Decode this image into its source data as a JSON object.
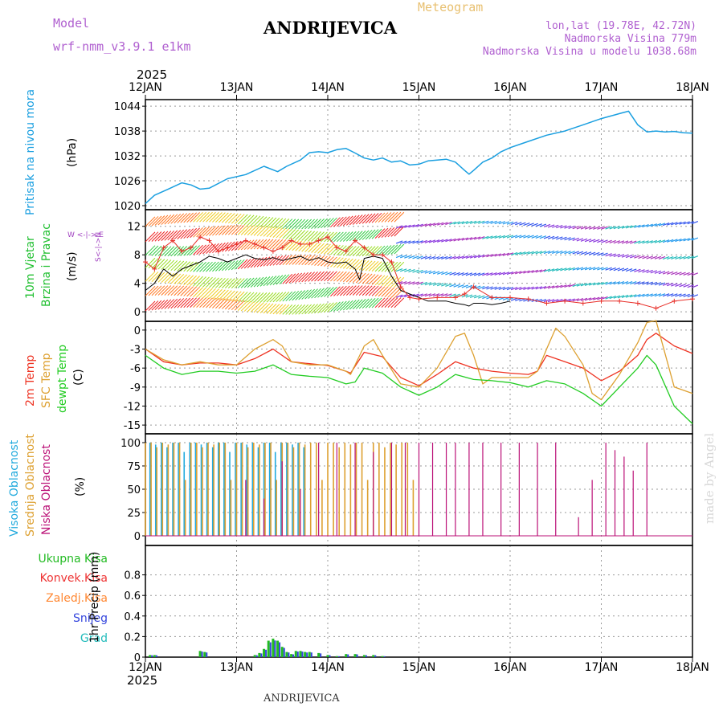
{
  "header": {
    "model_label": "Model",
    "model_name": "wrf-nmm_v3.9.1  e1km",
    "title": "ANDRIJEVICA",
    "subtitle": "Meteogram",
    "coords": "lon,lat (19.78E, 42.72N)",
    "elevation": "Nadmorska Visina 779m",
    "model_elevation": "Nadmorska Visina u modelu 1038.68m",
    "year_top": "2025",
    "year_bottom": "2025",
    "footer": "ANDRIJEVICA",
    "credit": "made by Angel"
  },
  "colors": {
    "pressure": "#1a9fe0",
    "wind_label": "#22c032",
    "wind_speed": "#000000",
    "gust": "#e8302a",
    "compass": "#a040c0",
    "temp2m": "#ee3322",
    "sfc": "#dda030",
    "dew": "#22cc22",
    "high_cloud": "#22aadd",
    "mid_cloud": "#dda030",
    "low_cloud": "#bb1177",
    "total_precip": "#22bb22",
    "convective": "#ee3333",
    "frozen": "#ff8833",
    "snow": "#3344dd",
    "grad": "#22bbbb"
  },
  "chart_data": [
    {
      "type": "line",
      "panel": "pressure",
      "ylabel_left": "Pritisak na nivou mora",
      "unit": "(hPa)",
      "x_ticks": [
        "12JAN",
        "13JAN",
        "14JAN",
        "15JAN",
        "16JAN",
        "17JAN",
        "18JAN"
      ],
      "ylim": [
        1020,
        1045
      ],
      "y_ticks": [
        1020,
        1026,
        1032,
        1038,
        1044
      ],
      "grid": true,
      "series": [
        {
          "color_key": "pressure",
          "x": [
            0,
            0.1,
            0.25,
            0.4,
            0.5,
            0.6,
            0.7,
            0.9,
            1.1,
            1.3,
            1.45,
            1.55,
            1.7,
            1.8,
            1.9,
            2.0,
            2.1,
            2.2,
            2.3,
            2.4,
            2.5,
            2.6,
            2.7,
            2.8,
            2.9,
            3.0,
            3.1,
            3.2,
            3.3,
            3.4,
            3.5,
            3.55,
            3.6,
            3.7,
            3.8,
            3.9,
            4.0,
            4.2,
            4.4,
            4.6,
            4.8,
            5.0,
            5.1,
            5.2,
            5.3,
            5.4,
            5.5,
            5.6,
            5.7,
            5.8,
            5.9,
            6.0
          ],
          "y": [
            1020.5,
            1022.5,
            1024,
            1025.5,
            1025,
            1024,
            1024.2,
            1026.5,
            1027.5,
            1029.5,
            1028.2,
            1029.5,
            1031,
            1032.8,
            1033,
            1032.8,
            1033.5,
            1033.8,
            1032.7,
            1031.5,
            1031,
            1031.5,
            1030.5,
            1030.8,
            1029.8,
            1030,
            1030.8,
            1031,
            1031.2,
            1030.5,
            1028.5,
            1027.6,
            1028.5,
            1030.5,
            1031.5,
            1033,
            1034,
            1035.5,
            1037,
            1038,
            1039.5,
            1041,
            1041.6,
            1042.2,
            1042.8,
            1039.5,
            1037.8,
            1038,
            1037.8,
            1037.9,
            1037.6,
            1037.5
          ]
        }
      ]
    },
    {
      "type": "line",
      "panel": "wind",
      "ylabel_left": [
        "10m Vjetar",
        "Brzina i Pravac"
      ],
      "unit": "(m/s)",
      "compass": "W <-|-> E",
      "compass_v": "S<-|->N",
      "ylim": [
        -1,
        14
      ],
      "y_ticks": [
        0,
        4,
        8,
        12
      ],
      "grid": true,
      "series": [
        {
          "name": "speed",
          "color_key": "wind_speed",
          "x": [
            0,
            0.1,
            0.2,
            0.3,
            0.4,
            0.5,
            0.6,
            0.7,
            0.8,
            0.9,
            1.0,
            1.1,
            1.2,
            1.3,
            1.4,
            1.5,
            1.6,
            1.7,
            1.8,
            1.9,
            2.0,
            2.1,
            2.2,
            2.3,
            2.35,
            2.4,
            2.5,
            2.6,
            2.7,
            2.8,
            2.9,
            3.0,
            3.1,
            3.2,
            3.3,
            3.4,
            3.5,
            3.55,
            3.6,
            3.7,
            3.8,
            3.9,
            4.0
          ],
          "y": [
            3,
            4,
            6,
            5,
            6,
            6.5,
            7,
            7.8,
            7.5,
            7,
            7.5,
            8,
            7.5,
            7.3,
            7.6,
            7.2,
            7.5,
            7.8,
            7.2,
            7.6,
            7,
            6.8,
            7,
            6,
            4.5,
            7.5,
            7.8,
            7.5,
            5,
            3,
            2.5,
            2,
            1.5,
            1.5,
            1.5,
            1.2,
            1,
            0.8,
            1.2,
            1.2,
            1,
            1.2,
            1.5
          ]
        },
        {
          "name": "gust",
          "color_key": "gust",
          "x": [
            0,
            0.1,
            0.2,
            0.3,
            0.4,
            0.5,
            0.6,
            0.7,
            0.8,
            0.9,
            1.0,
            1.1,
            1.2,
            1.3,
            1.4,
            1.5,
            1.6,
            1.7,
            1.8,
            1.9,
            2.0,
            2.1,
            2.2,
            2.3,
            2.4,
            2.5,
            2.6,
            2.7,
            2.8,
            2.9,
            3.0,
            3.2,
            3.4,
            3.5,
            3.6,
            3.8,
            4.0,
            4.2,
            4.4,
            4.6,
            4.8,
            5.0,
            5.2,
            5.4,
            5.6,
            5.8,
            6.0
          ],
          "y": [
            7,
            6,
            9,
            10,
            8.5,
            9,
            10.5,
            10,
            8.5,
            9,
            9.5,
            10,
            9.5,
            9,
            8.5,
            9,
            10,
            9.5,
            9.5,
            10,
            10.5,
            9,
            8.5,
            10,
            9,
            8,
            8,
            7,
            3.5,
            2,
            1.8,
            2,
            2,
            2.5,
            3.5,
            2,
            2,
            1.8,
            1.2,
            1.5,
            1.2,
            1.5,
            1.5,
            1.2,
            0.5,
            1.5,
            1.8
          ]
        }
      ]
    },
    {
      "type": "line",
      "panel": "temperature",
      "ylabel_left": [
        "2m Temp",
        "SFC Temp",
        "dewpt Temp"
      ],
      "unit": "(C)",
      "ylim": [
        -16,
        1
      ],
      "y_ticks": [
        0,
        -3,
        -6,
        -9,
        -12,
        -15
      ],
      "grid": true,
      "series": [
        {
          "name": "2m",
          "color_key": "temp2m",
          "x": [
            0,
            0.2,
            0.4,
            0.6,
            0.8,
            1.0,
            1.2,
            1.4,
            1.6,
            1.8,
            2.0,
            2.2,
            2.25,
            2.4,
            2.6,
            2.8,
            3.0,
            3.2,
            3.4,
            3.5,
            3.6,
            3.8,
            4.0,
            4.2,
            4.3,
            4.4,
            4.6,
            4.8,
            5.0,
            5.2,
            5.4,
            5.5,
            5.6,
            5.8,
            6.0
          ],
          "y": [
            -3,
            -5,
            -5.5,
            -5.2,
            -5.2,
            -5.5,
            -4.5,
            -3,
            -5,
            -5.3,
            -5.6,
            -6.5,
            -6.8,
            -3.5,
            -4.2,
            -7.5,
            -8.8,
            -7,
            -5,
            -5.5,
            -6,
            -6.5,
            -6.8,
            -7,
            -6.5,
            -4,
            -5,
            -6,
            -8,
            -6.5,
            -4,
            -1.5,
            -0.5,
            -2.5,
            -3.7
          ]
        },
        {
          "name": "sfc",
          "color_key": "sfc",
          "x": [
            0,
            0.2,
            0.4,
            0.6,
            0.8,
            1.0,
            1.2,
            1.4,
            1.5,
            1.6,
            1.8,
            2.0,
            2.2,
            2.25,
            2.4,
            2.5,
            2.6,
            2.8,
            3.0,
            3.2,
            3.4,
            3.5,
            3.6,
            3.7,
            3.8,
            4.0,
            4.2,
            4.3,
            4.4,
            4.5,
            4.6,
            4.8,
            4.9,
            5.0,
            5.2,
            5.4,
            5.5,
            5.6,
            5.8,
            6.0
          ],
          "y": [
            -3,
            -4.7,
            -5.5,
            -5,
            -5.5,
            -5.5,
            -3,
            -1.5,
            -2.5,
            -5,
            -5.5,
            -5.5,
            -6.5,
            -7,
            -2.5,
            -1.5,
            -4,
            -8.5,
            -9,
            -6,
            -1,
            -0.5,
            -4,
            -8.5,
            -7.5,
            -7.5,
            -7.5,
            -6.5,
            -3,
            0.3,
            -1,
            -5.5,
            -10,
            -11,
            -7,
            -2,
            1.2,
            1.5,
            -9,
            -10
          ]
        },
        {
          "name": "dew",
          "color_key": "dew",
          "x": [
            0,
            0.2,
            0.4,
            0.6,
            0.8,
            1.0,
            1.2,
            1.4,
            1.6,
            1.8,
            2.0,
            2.2,
            2.3,
            2.4,
            2.6,
            2.8,
            3.0,
            3.2,
            3.4,
            3.6,
            3.8,
            4.0,
            4.2,
            4.4,
            4.6,
            4.8,
            5.0,
            5.2,
            5.4,
            5.5,
            5.6,
            5.8,
            6.0
          ],
          "y": [
            -4,
            -6,
            -7,
            -6.5,
            -6.5,
            -6.8,
            -6.5,
            -5.5,
            -7,
            -7.3,
            -7.5,
            -8.5,
            -8.2,
            -6,
            -6.8,
            -9,
            -10.3,
            -9,
            -7,
            -7.8,
            -8,
            -8.3,
            -9,
            -8,
            -8.5,
            -10,
            -12,
            -9,
            -6,
            -4,
            -5.5,
            -12,
            -14.8
          ]
        }
      ]
    },
    {
      "type": "bar",
      "panel": "clouds",
      "ylabel_left": [
        "Visoka Oblacnost",
        "Srednja Oblacnost",
        "Niska Oblacnost"
      ],
      "unit": "(%)",
      "ylim": [
        0,
        100
      ],
      "y_ticks": [
        0,
        25,
        50,
        75,
        100
      ],
      "grid": true,
      "series": [
        {
          "name": "high",
          "color_key": "high_cloud",
          "x_start": 0.05,
          "x_end": 1.75,
          "step": 0.0625,
          "values_pattern": [
            100,
            98,
            100,
            95,
            100,
            100,
            90,
            100
          ]
        },
        {
          "name": "mid",
          "color_key": "mid_cloud",
          "x_start": 0.0,
          "x_end": 2.95,
          "step": 0.0625,
          "values_pattern": [
            100,
            100,
            95,
            100,
            98,
            100,
            100,
            60
          ]
        },
        {
          "name": "low",
          "color_key": "low_cloud",
          "x": [
            1.1,
            1.3,
            1.5,
            1.7,
            1.9,
            2.1,
            2.3,
            2.5,
            2.7,
            2.85,
            3.0,
            3.15,
            3.3,
            3.4,
            3.55,
            3.7,
            3.9,
            4.1,
            4.3,
            4.5,
            4.75,
            4.9,
            5.05,
            5.15,
            5.25,
            5.35,
            5.5
          ],
          "values": [
            60,
            40,
            80,
            50,
            100,
            100,
            100,
            90,
            100,
            100,
            100,
            100,
            100,
            100,
            100,
            100,
            100,
            100,
            100,
            100,
            20,
            60,
            100,
            92,
            85,
            70,
            100
          ]
        }
      ]
    },
    {
      "type": "bar",
      "panel": "precip",
      "ylabel_left": "1hr Precip (mm)",
      "legend": [
        "Ukupna Kisa",
        "Konvek.Kisa",
        "Zaledj.Kisa",
        "Snijeg",
        "Grad"
      ],
      "ylim": [
        0,
        1.0
      ],
      "y_ticks": [
        0,
        0.2,
        0.4,
        0.6,
        0.8
      ],
      "grid": true,
      "series": [
        {
          "name": "total",
          "color_key": "total_precip",
          "x": [
            0.05,
            0.1,
            0.6,
            0.65,
            1.2,
            1.25,
            1.3,
            1.35,
            1.4,
            1.45,
            1.5,
            1.55,
            1.6,
            1.65,
            1.7,
            1.75,
            1.8,
            1.9,
            2.0,
            2.1,
            2.2,
            2.3,
            2.4,
            2.5,
            2.6
          ],
          "values": [
            0.02,
            0.02,
            0.06,
            0.05,
            0.02,
            0.04,
            0.08,
            0.16,
            0.18,
            0.16,
            0.1,
            0.05,
            0.03,
            0.06,
            0.06,
            0.05,
            0.05,
            0.04,
            0.02,
            0.01,
            0.03,
            0.03,
            0.02,
            0.02,
            0.01
          ]
        }
      ]
    }
  ]
}
